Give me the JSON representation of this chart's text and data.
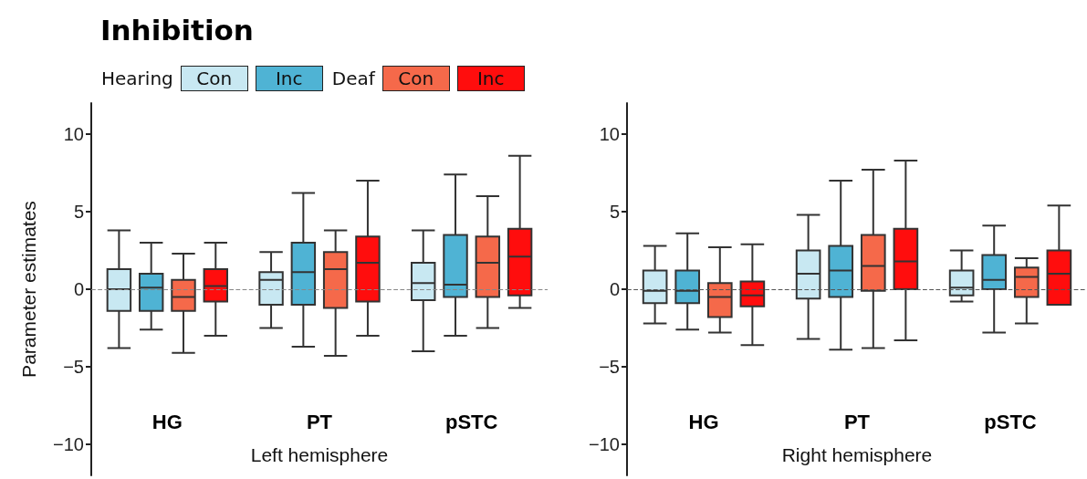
{
  "chart_data": [
    {
      "type": "box",
      "title": "Inhibition",
      "xlabel": "Left hemisphere",
      "ylabel": "Parameter estimates",
      "annotations": [
        "Hearing",
        "Deaf"
      ],
      "legend": "top",
      "categories": [
        "HG",
        "PT",
        "pSTC"
      ],
      "ylim": [
        -12,
        12
      ],
      "yticks": [
        -10,
        -5,
        0,
        5,
        10
      ],
      "ref_lines": [
        {
          "axis": "y",
          "value": 0,
          "color": "#888888",
          "line_style": "dashed"
        }
      ],
      "series": [
        {
          "name": "Con",
          "color": "#c8e8f2",
          "boxes": [
            {
              "low": -3.8,
              "q1": -1.4,
              "median": 0,
              "q3": 1.3,
              "high": 3.8
            },
            {
              "low": -2.5,
              "q1": -1,
              "median": 0.6,
              "q3": 1.1,
              "high": 2.4
            },
            {
              "low": -4,
              "q1": -0.7,
              "median": 0.4,
              "q3": 1.7,
              "high": 3.8
            }
          ]
        },
        {
          "name": "Inc",
          "color": "#4fb3d4",
          "boxes": [
            {
              "low": -2.6,
              "q1": -1.4,
              "median": 0.1,
              "q3": 1,
              "high": 3
            },
            {
              "low": -3.7,
              "q1": -1,
              "median": 1.1,
              "q3": 3,
              "high": 6.2
            },
            {
              "low": -3,
              "q1": -0.5,
              "median": 0.3,
              "q3": 3.5,
              "high": 7.4
            }
          ]
        },
        {
          "name": "Con",
          "color": "#f5694a",
          "boxes": [
            {
              "low": -4.1,
              "q1": -1.4,
              "median": -0.5,
              "q3": 0.6,
              "high": 2.3
            },
            {
              "low": -4.3,
              "q1": -1.2,
              "median": 1.3,
              "q3": 2.4,
              "high": 3.8
            },
            {
              "low": -2.5,
              "q1": -0.5,
              "median": 1.7,
              "q3": 3.4,
              "high": 6
            }
          ]
        },
        {
          "name": "Inc",
          "color": "#ff0d0d",
          "boxes": [
            {
              "low": -3,
              "q1": -0.8,
              "median": 0.2,
              "q3": 1.3,
              "high": 3
            },
            {
              "low": -3,
              "q1": -0.8,
              "median": 1.7,
              "q3": 3.4,
              "high": 7
            },
            {
              "low": -1.2,
              "q1": -0.4,
              "median": 2.1,
              "q3": 3.9,
              "high": 8.6
            }
          ]
        }
      ]
    },
    {
      "type": "box",
      "xlabel": "Right hemisphere",
      "categories": [
        "HG",
        "PT",
        "pSTC"
      ],
      "ylim": [
        -12,
        12
      ],
      "yticks": [
        -10,
        -5,
        0,
        5,
        10
      ],
      "ref_lines": [
        {
          "axis": "y",
          "value": 0,
          "color": "#555555",
          "line_style": "dashed"
        }
      ],
      "series": [
        {
          "color": "#c8e8f2",
          "boxes": [
            {
              "low": -2.2,
              "q1": -0.9,
              "median": -0.1,
              "q3": 1.2,
              "high": 2.8
            },
            {
              "low": -3.2,
              "q1": -0.6,
              "median": 1,
              "q3": 2.5,
              "high": 4.8
            },
            {
              "low": -0.8,
              "q1": -0.4,
              "median": 0.1,
              "q3": 1.2,
              "high": 2.5
            }
          ]
        },
        {
          "color": "#4fb3d4",
          "boxes": [
            {
              "low": -2.6,
              "q1": -0.9,
              "median": -0.1,
              "q3": 1.2,
              "high": 3.6
            },
            {
              "low": -3.9,
              "q1": -0.5,
              "median": 1.2,
              "q3": 2.8,
              "high": 7
            },
            {
              "low": -2.8,
              "q1": 0,
              "median": 0.6,
              "q3": 2.2,
              "high": 4.1
            }
          ]
        },
        {
          "color": "#f5694a",
          "boxes": [
            {
              "low": -2.8,
              "q1": -1.8,
              "median": -0.5,
              "q3": 0.4,
              "high": 2.7
            },
            {
              "low": -3.8,
              "q1": -0.1,
              "median": 1.5,
              "q3": 3.5,
              "high": 7.7
            },
            {
              "low": -2.2,
              "q1": -0.5,
              "median": 0.8,
              "q3": 1.4,
              "high": 2
            }
          ]
        },
        {
          "color": "#ff0d0d",
          "boxes": [
            {
              "low": -3.6,
              "q1": -1.1,
              "median": -0.4,
              "q3": 0.5,
              "high": 2.9
            },
            {
              "low": -3.3,
              "q1": 0,
              "median": 1.8,
              "q3": 3.9,
              "high": 8.3
            },
            {
              "low": -1,
              "q1": -1,
              "median": 1,
              "q3": 2.5,
              "high": 5.4
            }
          ]
        }
      ]
    }
  ]
}
